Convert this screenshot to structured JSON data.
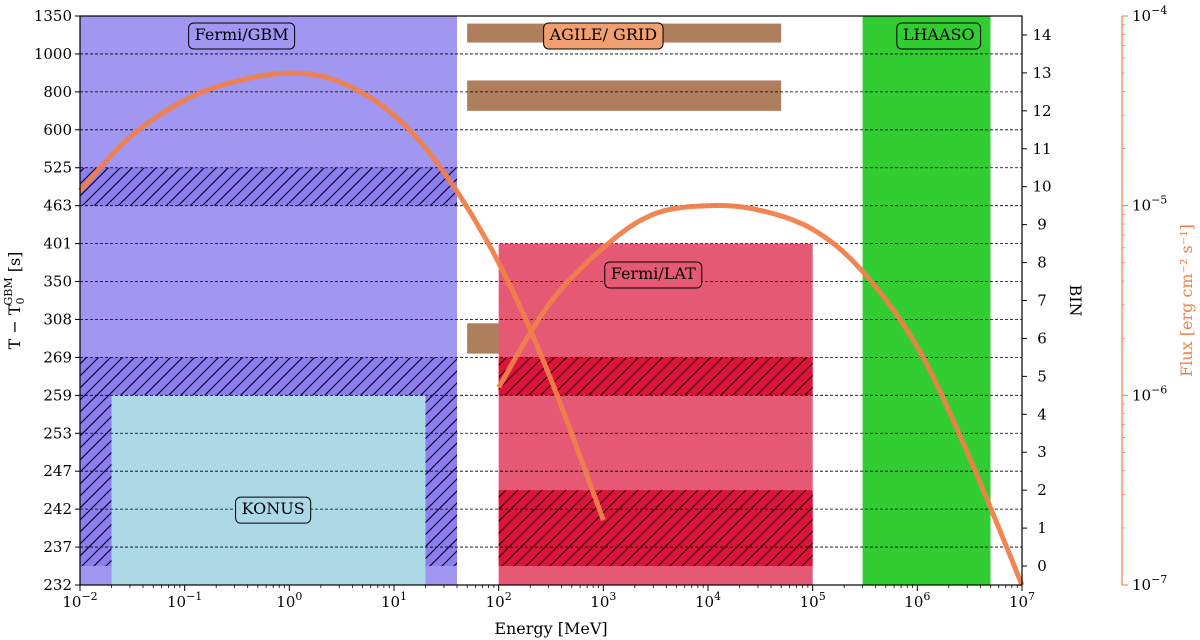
{
  "chart_data": {
    "type": "composite",
    "xlabel": "Energy [MeV]",
    "ylabel_left": "T − T",
    "ylabel_left_sub": "0",
    "ylabel_left_sup": "GBM",
    "ylabel_left_unit": " [s]",
    "ylabel_right": "BIN",
    "ylabel_flux": "Flux [erg cm⁻² s⁻¹]",
    "x_scale": "log",
    "xlim": [
      0.01,
      10000000
    ],
    "x_ticks": [
      {
        "value": 0.01,
        "mant": "10",
        "exp": "−2"
      },
      {
        "value": 0.1,
        "mant": "10",
        "exp": "−1"
      },
      {
        "value": 1,
        "mant": "10",
        "exp": "0"
      },
      {
        "value": 10,
        "mant": "10",
        "exp": "1"
      },
      {
        "value": 100,
        "mant": "10",
        "exp": "2"
      },
      {
        "value": 1000,
        "mant": "10",
        "exp": "3"
      },
      {
        "value": 10000,
        "mant": "10",
        "exp": "4"
      },
      {
        "value": 100000,
        "mant": "10",
        "exp": "5"
      },
      {
        "value": 1000000,
        "mant": "10",
        "exp": "6"
      },
      {
        "value": 10000000,
        "mant": "10",
        "exp": "7"
      }
    ],
    "time_tick_labels": [
      "232",
      "237",
      "242",
      "247",
      "253",
      "259",
      "269",
      "308",
      "350",
      "401",
      "463",
      "525",
      "600",
      "800",
      "1000",
      "1350"
    ],
    "bin_range": [
      -0.5,
      14.5
    ],
    "bin_ticks": [
      "0",
      "1",
      "2",
      "3",
      "4",
      "5",
      "6",
      "7",
      "8",
      "9",
      "10",
      "11",
      "12",
      "13",
      "14"
    ],
    "flux_scale": "log",
    "flux_range": [
      1e-07,
      0.0001
    ],
    "flux_ticks": [
      {
        "value": 1e-07,
        "mant": "10",
        "exp": "−7"
      },
      {
        "value": 1e-06,
        "mant": "10",
        "exp": "−6"
      },
      {
        "value": 1e-05,
        "mant": "10",
        "exp": "−5"
      },
      {
        "value": 0.0001,
        "mant": "10",
        "exp": "−4"
      }
    ],
    "grid": "horizontal dashed at each bin boundary",
    "instruments": [
      {
        "name": "Fermi/GBM",
        "e_min": 0.01,
        "e_max": 40,
        "bin_min": 0,
        "bin_max": 15,
        "color": "#a196f0",
        "hatched_bins": [
          [
            0,
            5.5
          ],
          [
            9.5,
            10.5
          ]
        ],
        "hatch_base": "#8d7ef0",
        "label_energy": 0.35,
        "label_bin": 14
      },
      {
        "name": "KONUS",
        "e_min": 0.02,
        "e_max": 20,
        "bin_min": 0,
        "bin_max": 4.5,
        "color": "#add8e6",
        "label_energy": 0.7,
        "label_bin": 1.5
      },
      {
        "name": "AGILE/ GRID",
        "e_min": 50,
        "e_max": 50000,
        "bars": [
          [
            13.8,
            14.3
          ],
          [
            12.0,
            12.8
          ],
          [
            5.6,
            6.4
          ]
        ],
        "color": "#9b5e33",
        "opacity": 0.8,
        "label_energy": 1000,
        "label_bin": 14
      },
      {
        "name": "Fermi/LAT",
        "e_min": 100,
        "e_max": 100000,
        "bin_min": 0,
        "bin_max": 8.5,
        "color": "#e65975",
        "hatched_bins": [
          [
            0,
            2
          ],
          [
            4.5,
            5.5
          ]
        ],
        "hatch_base": "#dc143c",
        "label_energy": 3000,
        "label_bin": 7.7
      },
      {
        "name": "LHAASO",
        "e_min": 300000,
        "e_max": 5000000,
        "bin_min": 0,
        "bin_max": 15,
        "color": "#32cd32",
        "label_energy": 1600000,
        "label_bin": 14
      }
    ],
    "series": [
      {
        "color": "#f07f4a",
        "x": [
          0.01,
          0.03,
          0.1,
          0.3,
          1,
          3,
          10,
          30,
          100,
          300,
          1000
        ],
        "y": [
          1.2e-05,
          2.3e-05,
          3.6e-05,
          4.5e-05,
          5e-05,
          4.5e-05,
          3e-05,
          1.5e-05,
          5e-06,
          1.3e-06,
          2.2e-07
        ]
      },
      {
        "color": "#f07f4a",
        "x": [
          100,
          300,
          1000,
          3000,
          10000,
          30000,
          100000,
          300000,
          1000000,
          3000000,
          10000000
        ],
        "y": [
          1.1e-06,
          3e-06,
          6e-06,
          9e-06,
          1e-05,
          9.5e-06,
          7.5e-06,
          4.5e-06,
          1.8e-06,
          5e-07,
          1e-07
        ]
      }
    ]
  }
}
